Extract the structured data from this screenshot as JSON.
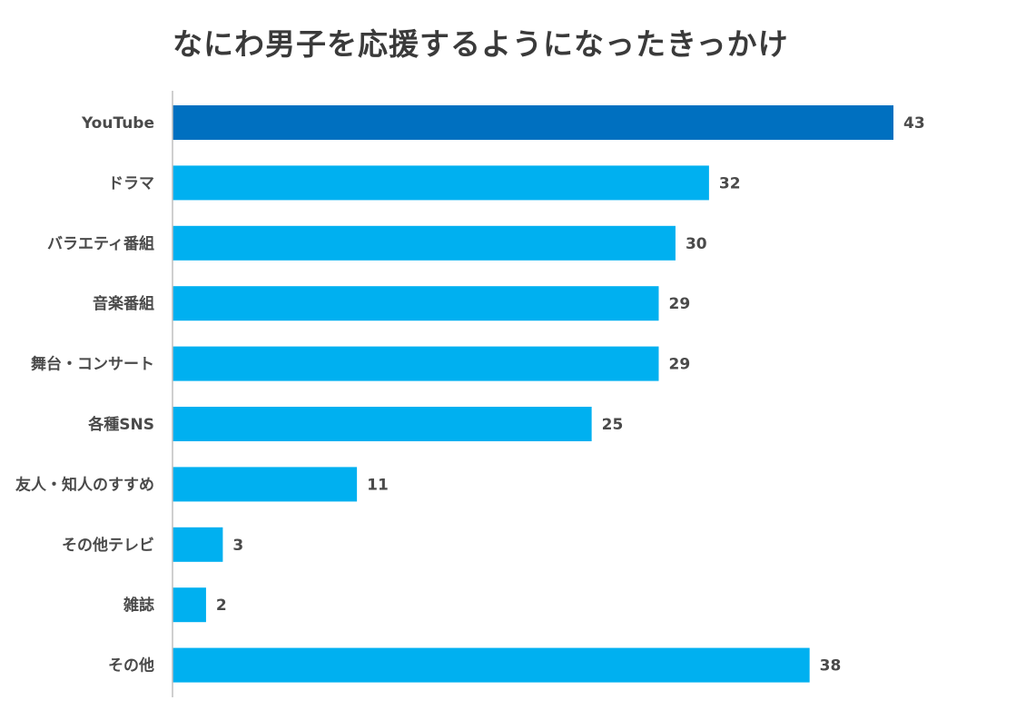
{
  "chart_data": {
    "type": "bar",
    "orientation": "horizontal",
    "title": "なにわ男子を応援するようになったきっかけ",
    "categories": [
      "YouTube",
      "ドラマ",
      "バラエティ番組",
      "音楽番組",
      "舞台・コンサート",
      "各種SNS",
      "友人・知人のすすめ",
      "その他テレビ",
      "雑誌",
      "その他"
    ],
    "values": [
      43,
      32,
      30,
      29,
      29,
      25,
      11,
      3,
      2,
      38
    ],
    "xlim": [
      0,
      45
    ],
    "grid": false,
    "legend": "none",
    "colors": {
      "highlight": "#0070c0",
      "default": "#00b0f0",
      "axis": "#bfbfbf",
      "text": "#4a4a4a",
      "title": "#3a3a3a"
    },
    "highlight_index": 0
  }
}
